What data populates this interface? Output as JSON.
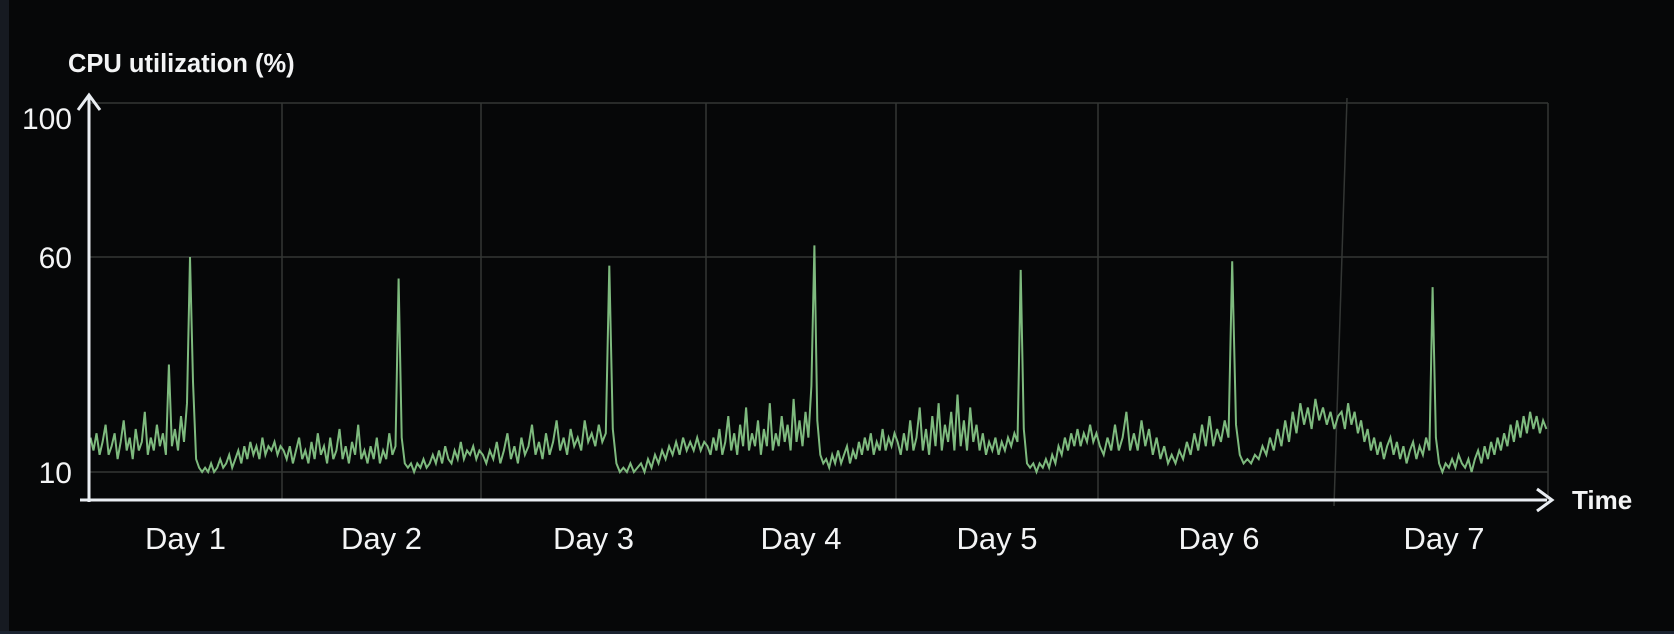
{
  "window": {
    "background": "#060708",
    "left_edge_color": "#161a21",
    "bottom_edge_color": "#1b2330"
  },
  "colors": {
    "plot_background": "#000000",
    "grid": "#333634",
    "axis": "#e9edf2",
    "text": "#f3f4f5",
    "series": "#7eba7e"
  },
  "chart_data": {
    "type": "line",
    "title": "CPU utilization (%)",
    "xlabel": "Time",
    "ylabel": "",
    "x_tick_labels": [
      "Day 1",
      "Day 2",
      "Day 3",
      "Day 4",
      "Day 5",
      "Day 6",
      "Day 7"
    ],
    "y_ticks": [
      100,
      60,
      10
    ],
    "ylim": [
      0,
      100
    ],
    "grid": true,
    "legend": "none",
    "daily_peak_values": [
      60,
      55,
      58,
      63,
      57,
      59,
      53
    ],
    "baseline_range": [
      10,
      25
    ],
    "series": [
      {
        "name": "CPU utilization",
        "unit": "%",
        "color": "#7eba7e",
        "samples_per_day": 64,
        "values_by_day": [
          [
            18,
            15,
            19,
            14,
            17,
            21,
            14,
            16,
            19,
            13,
            17,
            22,
            15,
            18,
            13,
            20,
            15,
            17,
            24,
            14,
            18,
            15,
            21,
            16,
            19,
            14,
            35,
            16,
            20,
            15,
            23,
            17,
            26,
            60,
            31,
            13,
            11,
            10,
            11,
            10,
            12,
            10,
            11,
            13,
            11,
            12,
            14,
            11,
            13,
            15,
            12,
            16,
            13,
            17,
            14,
            16,
            13,
            18,
            14,
            16,
            15,
            17,
            14,
            16
          ],
          [
            15,
            13,
            16,
            12,
            15,
            18,
            13,
            15,
            12,
            17,
            13,
            19,
            14,
            16,
            12,
            18,
            13,
            15,
            20,
            13,
            16,
            12,
            17,
            14,
            21,
            13,
            15,
            12,
            16,
            13,
            18,
            12,
            15,
            13,
            19,
            14,
            16,
            55,
            18,
            12,
            11,
            12,
            10,
            12,
            11,
            13,
            11,
            12,
            14,
            12,
            15,
            12,
            16,
            13,
            12,
            15,
            13,
            17,
            13,
            15,
            14,
            16,
            13,
            15
          ],
          [
            14,
            12,
            15,
            13,
            17,
            12,
            15,
            19,
            13,
            16,
            12,
            18,
            14,
            16,
            21,
            14,
            17,
            13,
            19,
            14,
            17,
            22,
            15,
            18,
            14,
            20,
            16,
            18,
            15,
            22,
            17,
            19,
            16,
            21,
            17,
            19,
            58,
            20,
            12,
            10,
            11,
            10,
            12,
            10,
            11,
            12,
            10,
            13,
            11,
            14,
            12,
            15,
            13,
            16,
            14,
            17,
            14,
            18,
            15,
            17,
            15,
            18,
            15,
            17
          ],
          [
            16,
            14,
            18,
            15,
            20,
            14,
            17,
            23,
            15,
            19,
            14,
            21,
            16,
            25,
            15,
            19,
            16,
            22,
            14,
            20,
            16,
            26,
            15,
            19,
            16,
            23,
            17,
            21,
            15,
            27,
            17,
            22,
            16,
            24,
            18,
            30,
            63,
            22,
            14,
            12,
            13,
            11,
            14,
            12,
            15,
            12,
            14,
            16,
            12,
            15,
            13,
            17,
            14,
            18,
            15,
            19,
            14,
            17,
            15,
            20,
            15,
            18,
            16,
            19
          ],
          [
            17,
            14,
            19,
            15,
            22,
            15,
            18,
            25,
            15,
            20,
            14,
            23,
            16,
            26,
            15,
            21,
            17,
            24,
            15,
            28,
            16,
            22,
            15,
            25,
            17,
            21,
            15,
            19,
            14,
            17,
            15,
            18,
            14,
            17,
            15,
            18,
            16,
            19,
            17,
            57,
            20,
            12,
            11,
            12,
            10,
            12,
            11,
            13,
            11,
            14,
            12,
            16,
            14,
            18,
            15,
            19,
            16,
            20,
            16,
            19,
            17,
            21,
            17,
            19
          ],
          [
            16,
            14,
            18,
            15,
            21,
            15,
            18,
            24,
            15,
            19,
            15,
            22,
            16,
            20,
            14,
            18,
            13,
            16,
            12,
            14,
            12,
            15,
            13,
            17,
            14,
            19,
            15,
            21,
            16,
            23,
            16,
            20,
            17,
            22,
            18,
            59,
            21,
            14,
            12,
            13,
            12,
            14,
            13,
            16,
            14,
            18,
            15,
            20,
            16,
            22,
            17,
            24,
            19,
            26,
            21,
            25,
            20,
            27,
            22,
            25,
            21,
            24,
            20,
            23
          ],
          [
            24,
            20,
            26,
            21,
            24,
            19,
            22,
            17,
            20,
            15,
            18,
            14,
            17,
            13,
            16,
            18,
            14,
            17,
            13,
            16,
            12,
            15,
            17,
            13,
            16,
            14,
            18,
            15,
            53,
            18,
            12,
            10,
            12,
            11,
            13,
            11,
            14,
            12,
            11,
            13,
            10,
            13,
            15,
            12,
            16,
            13,
            17,
            14,
            18,
            15,
            19,
            16,
            21,
            17,
            22,
            18,
            23,
            19,
            24,
            20,
            23,
            19,
            22,
            20
          ]
        ]
      }
    ]
  }
}
